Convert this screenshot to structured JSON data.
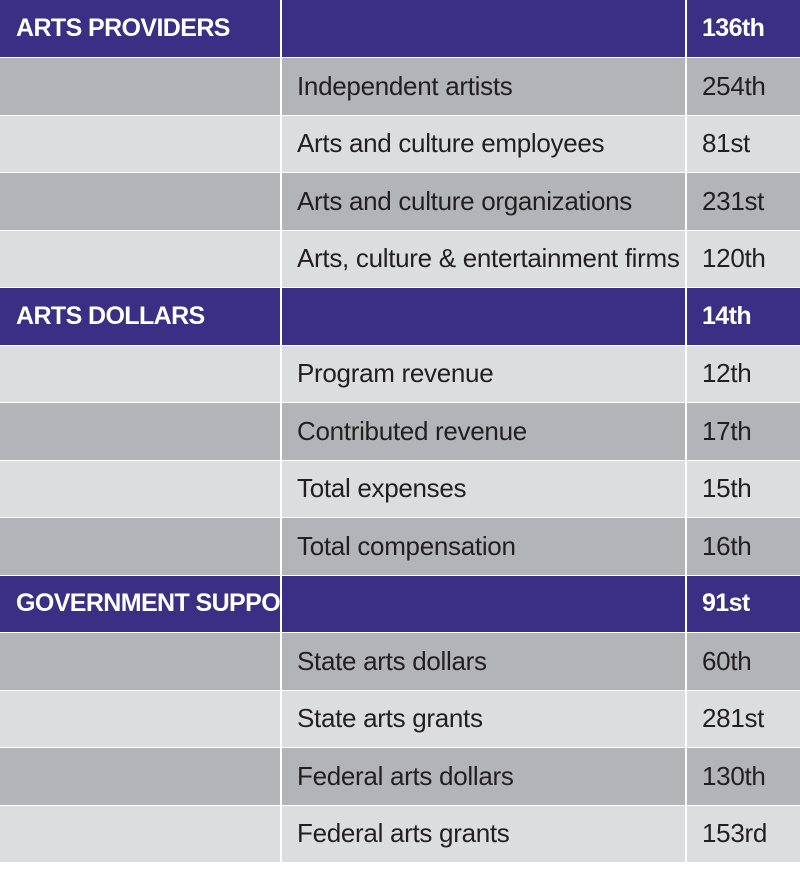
{
  "colors": {
    "section_header_bg": "#3b2f85",
    "row_dark_bg": "#b3b4b7",
    "row_light_bg": "#dcdddf",
    "text_dark": "#231f20",
    "text_light": "#ffffff"
  },
  "sections": [
    {
      "title": "ARTS PROVIDERS",
      "rank": "136th",
      "items": [
        {
          "label": "Independent artists",
          "rank": "254th"
        },
        {
          "label": "Arts and culture employees",
          "rank": "81st"
        },
        {
          "label": "Arts and culture organizations",
          "rank": "231st"
        },
        {
          "label": "Arts, culture & entertainment firms",
          "rank": "120th"
        }
      ]
    },
    {
      "title": "ARTS DOLLARS",
      "rank": "14th",
      "items": [
        {
          "label": "Program revenue",
          "rank": "12th"
        },
        {
          "label": "Contributed revenue",
          "rank": "17th"
        },
        {
          "label": "Total expenses",
          "rank": "15th"
        },
        {
          "label": "Total compensation",
          "rank": "16th"
        }
      ]
    },
    {
      "title": "GOVERNMENT SUPPORT",
      "rank": "91st",
      "items": [
        {
          "label": "State arts dollars",
          "rank": "60th"
        },
        {
          "label": "State arts grants",
          "rank": "281st"
        },
        {
          "label": "Federal arts dollars",
          "rank": "130th"
        },
        {
          "label": "Federal arts grants",
          "rank": "153rd"
        }
      ]
    }
  ]
}
